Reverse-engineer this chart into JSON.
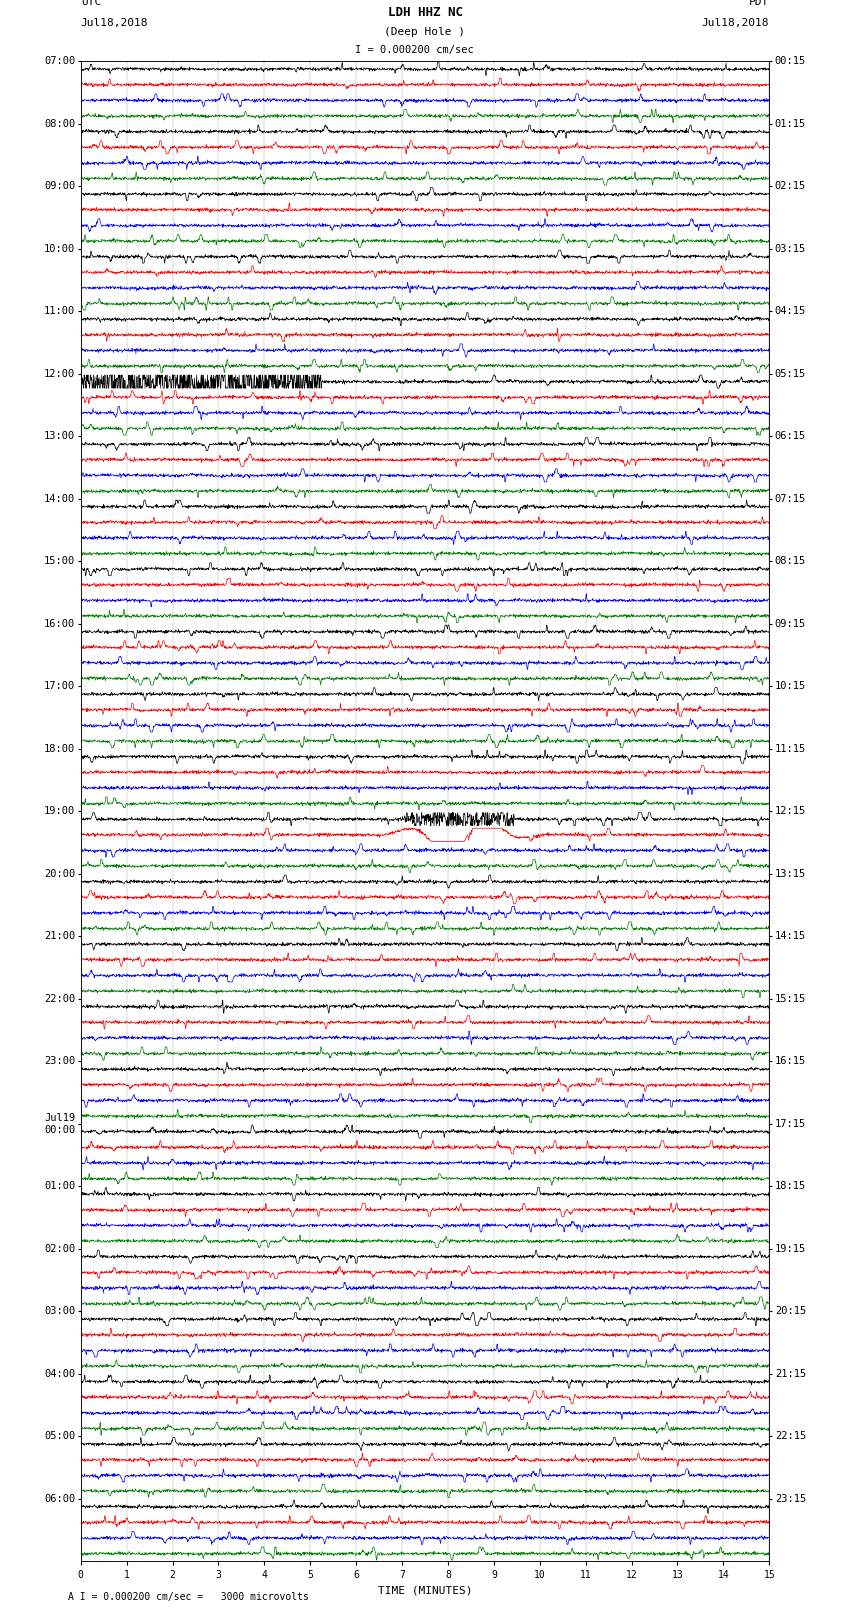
{
  "title": "LDH HHZ NC",
  "subtitle": "(Deep Hole )",
  "scale_label": "I = 0.000200 cm/sec",
  "footer_label": "A I = 0.000200 cm/sec =   3000 microvolts",
  "left_header_line1": "UTC",
  "left_header_line2": "Jul18,2018",
  "right_header_line1": "PDT",
  "right_header_line2": "Jul18,2018",
  "xlabel": "TIME (MINUTES)",
  "bg_color": "#ffffff",
  "trace_colors": [
    "black",
    "red",
    "blue",
    "green"
  ],
  "trace_linewidth": 0.5,
  "num_rows": 96,
  "left_times": [
    "07:00",
    "",
    "",
    "",
    "08:00",
    "",
    "",
    "",
    "09:00",
    "",
    "",
    "",
    "10:00",
    "",
    "",
    "",
    "11:00",
    "",
    "",
    "",
    "12:00",
    "",
    "",
    "",
    "13:00",
    "",
    "",
    "",
    "14:00",
    "",
    "",
    "",
    "15:00",
    "",
    "",
    "",
    "16:00",
    "",
    "",
    "",
    "17:00",
    "",
    "",
    "",
    "18:00",
    "",
    "",
    "",
    "19:00",
    "",
    "",
    "",
    "20:00",
    "",
    "",
    "",
    "21:00",
    "",
    "",
    "",
    "22:00",
    "",
    "",
    "",
    "23:00",
    "",
    "",
    "",
    "Jul19\n00:00",
    "",
    "",
    "",
    "01:00",
    "",
    "",
    "",
    "02:00",
    "",
    "",
    "",
    "03:00",
    "",
    "",
    "",
    "04:00",
    "",
    "",
    "",
    "05:00",
    "",
    "",
    "",
    "06:00",
    "",
    "",
    ""
  ],
  "right_times": [
    "00:15",
    "",
    "",
    "",
    "01:15",
    "",
    "",
    "",
    "02:15",
    "",
    "",
    "",
    "03:15",
    "",
    "",
    "",
    "04:15",
    "",
    "",
    "",
    "05:15",
    "",
    "",
    "",
    "06:15",
    "",
    "",
    "",
    "07:15",
    "",
    "",
    "",
    "08:15",
    "",
    "",
    "",
    "09:15",
    "",
    "",
    "",
    "10:15",
    "",
    "",
    "",
    "11:15",
    "",
    "",
    "",
    "12:15",
    "",
    "",
    "",
    "13:15",
    "",
    "",
    "",
    "14:15",
    "",
    "",
    "",
    "15:15",
    "",
    "",
    "",
    "16:15",
    "",
    "",
    "",
    "17:15",
    "",
    "",
    "",
    "18:15",
    "",
    "",
    "",
    "19:15",
    "",
    "",
    "",
    "20:15",
    "",
    "",
    "",
    "21:15",
    "",
    "",
    "",
    "22:15",
    "",
    "",
    "",
    "23:15",
    "",
    "",
    ""
  ],
  "x_ticks": [
    0,
    1,
    2,
    3,
    4,
    5,
    6,
    7,
    8,
    9,
    10,
    11,
    12,
    13,
    14,
    15
  ],
  "noise_seed": 42,
  "base_amplitude": 0.28,
  "figsize": [
    8.5,
    16.13
  ],
  "dpi": 100,
  "burst_row_black": 20,
  "burst_row_red": 48,
  "burst_row_red2": 49
}
